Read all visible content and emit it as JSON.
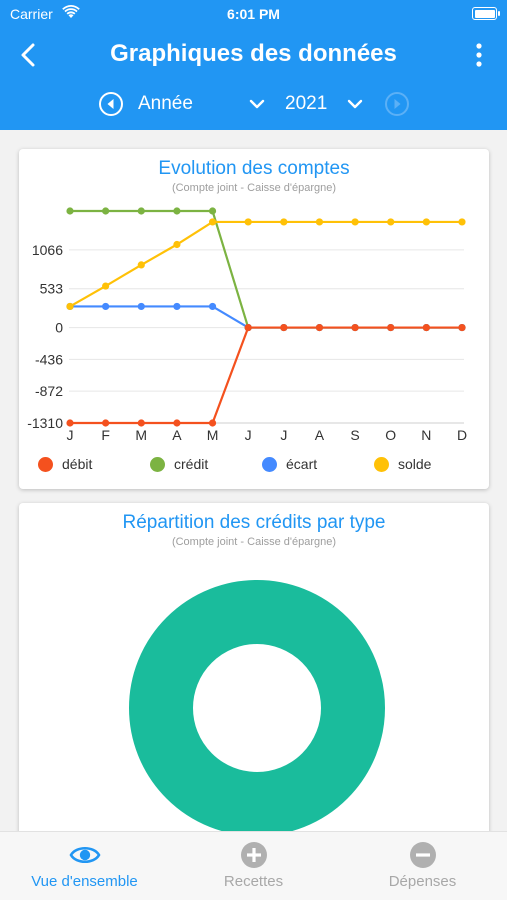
{
  "status_bar": {
    "carrier": "Carrier",
    "time": "6:01 PM"
  },
  "header": {
    "title": "Graphiques des données",
    "period": "Année",
    "year": "2021",
    "color": "#2196f3"
  },
  "chart1": {
    "title": "Evolution des comptes",
    "subtitle": "(Compte joint - Caisse d'épargne)"
  },
  "chart2": {
    "title": "Répartition des crédits par type",
    "subtitle": "(Compte joint - Caisse d'épargne)"
  },
  "chart_data": [
    {
      "type": "line",
      "title": "Evolution des comptes",
      "subtitle": "(Compte joint - Caisse d'épargne)",
      "x": [
        "J",
        "F",
        "M",
        "A",
        "M",
        "J",
        "J",
        "A",
        "S",
        "O",
        "N",
        "D"
      ],
      "y_ticks": [
        1066,
        533,
        0,
        -436,
        -872,
        -1310
      ],
      "series": [
        {
          "name": "débit",
          "color": "#f4511e",
          "values": [
            -1310,
            -1310,
            -1310,
            -1310,
            -1310,
            0,
            0,
            0,
            0,
            0,
            0,
            0
          ]
        },
        {
          "name": "crédit",
          "color": "#7cb342",
          "values": [
            1600,
            1600,
            1600,
            1600,
            1600,
            0,
            0,
            0,
            0,
            0,
            0,
            0
          ]
        },
        {
          "name": "écart",
          "color": "#448aff",
          "values": [
            290,
            290,
            290,
            290,
            290,
            0,
            0,
            0,
            0,
            0,
            0,
            0
          ]
        },
        {
          "name": "solde",
          "color": "#ffc107",
          "values": [
            290,
            570,
            860,
            1140,
            1450,
            1450,
            1450,
            1450,
            1450,
            1450,
            1450,
            1450
          ]
        }
      ],
      "grid": true,
      "legend": "bottom"
    },
    {
      "type": "pie",
      "title": "Répartition des crédits par type",
      "subtitle": "(Compte joint - Caisse d'épargne)",
      "donut": true,
      "slices": [
        {
          "value": 100,
          "color": "#1abc9c"
        }
      ]
    }
  ],
  "tabs": [
    {
      "label": "Vue d'ensemble",
      "icon": "eye-icon",
      "active": true
    },
    {
      "label": "Recettes",
      "icon": "plus-circle-icon",
      "active": false
    },
    {
      "label": "Dépenses",
      "icon": "minus-circle-icon",
      "active": false
    }
  ],
  "colors": {
    "accent": "#2196f3",
    "inactive": "#b0b0b0"
  }
}
